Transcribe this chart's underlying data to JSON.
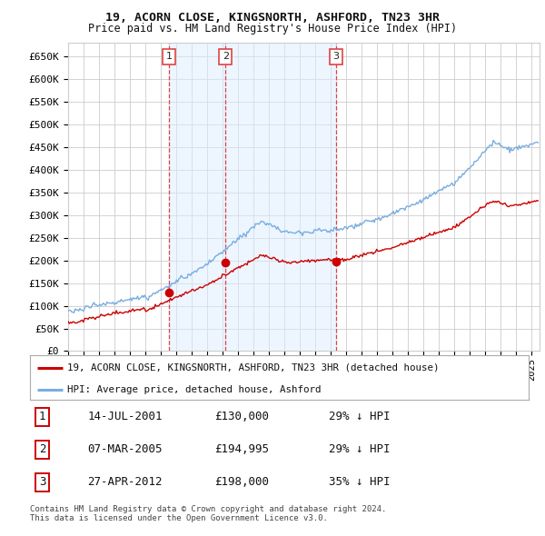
{
  "title_line1": "19, ACORN CLOSE, KINGSNORTH, ASHFORD, TN23 3HR",
  "title_line2": "Price paid vs. HM Land Registry's House Price Index (HPI)",
  "ylabel_ticks": [
    "£0",
    "£50K",
    "£100K",
    "£150K",
    "£200K",
    "£250K",
    "£300K",
    "£350K",
    "£400K",
    "£450K",
    "£500K",
    "£550K",
    "£600K",
    "£650K"
  ],
  "ytick_values": [
    0,
    50000,
    100000,
    150000,
    200000,
    250000,
    300000,
    350000,
    400000,
    450000,
    500000,
    550000,
    600000,
    650000
  ],
  "xlim_start": 1995.0,
  "xlim_end": 2025.5,
  "ylim_min": 0,
  "ylim_max": 680000,
  "sale_dates": [
    2001.54,
    2005.18,
    2012.32
  ],
  "sale_prices": [
    130000,
    194995,
    198000
  ],
  "sale_labels": [
    "1",
    "2",
    "3"
  ],
  "legend_label_red": "19, ACORN CLOSE, KINGSNORTH, ASHFORD, TN23 3HR (detached house)",
  "legend_label_blue": "HPI: Average price, detached house, Ashford",
  "table_entries": [
    {
      "num": "1",
      "date": "14-JUL-2001",
      "price": "£130,000",
      "pct": "29% ↓ HPI"
    },
    {
      "num": "2",
      "date": "07-MAR-2005",
      "price": "£194,995",
      "pct": "29% ↓ HPI"
    },
    {
      "num": "3",
      "date": "27-APR-2012",
      "price": "£198,000",
      "pct": "35% ↓ HPI"
    }
  ],
  "footnote1": "Contains HM Land Registry data © Crown copyright and database right 2024.",
  "footnote2": "This data is licensed under the Open Government Licence v3.0.",
  "background_color": "#ffffff",
  "grid_color": "#cccccc",
  "hpi_line_color": "#7aade0",
  "sold_line_color": "#cc0000",
  "vline_color": "#dd4444",
  "shade_color": "#ddeeff",
  "shade_alpha": 0.5
}
